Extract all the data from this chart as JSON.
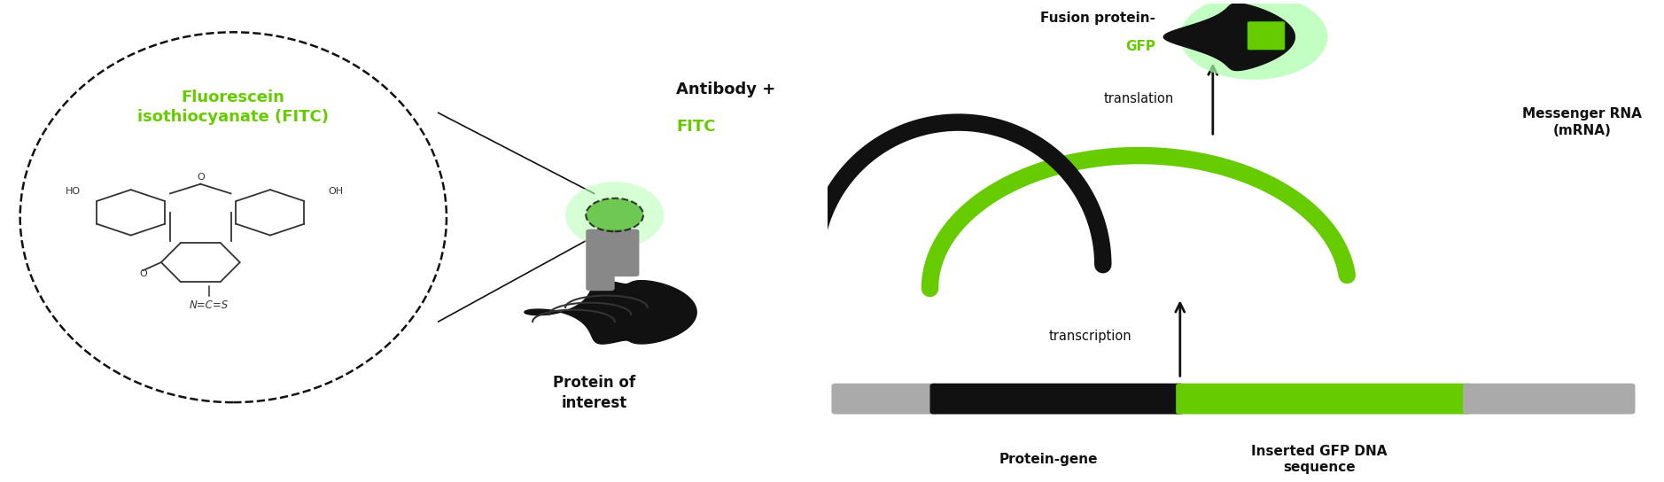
{
  "bg_color": "#ffffff",
  "green_color": "#66cc00",
  "green_light": "#aaffaa",
  "green_glow": "#ccffcc",
  "black_color": "#111111",
  "gray_color": "#999999",
  "dark_gray": "#555555",
  "title_fitc_text": "Fluorescein\nisothiocyanate (FITC)",
  "antibody_label_black": "Antibody + ",
  "antibody_label_green": "FITC",
  "protein_label": "Protein of\ninterest",
  "fitc_label": "Fluorescein\nisothiocyanate (FITC)",
  "fusion_label_black": "Fusion protein-",
  "fusion_label_green": "GFP",
  "mrna_label": "Messenger RNA\n(mRNA)",
  "translation_label": "translation",
  "transcription_label": "transcription",
  "protein_gene_label": "Protein-gene",
  "gfp_dna_label": "Inserted GFP DNA\nsequence"
}
